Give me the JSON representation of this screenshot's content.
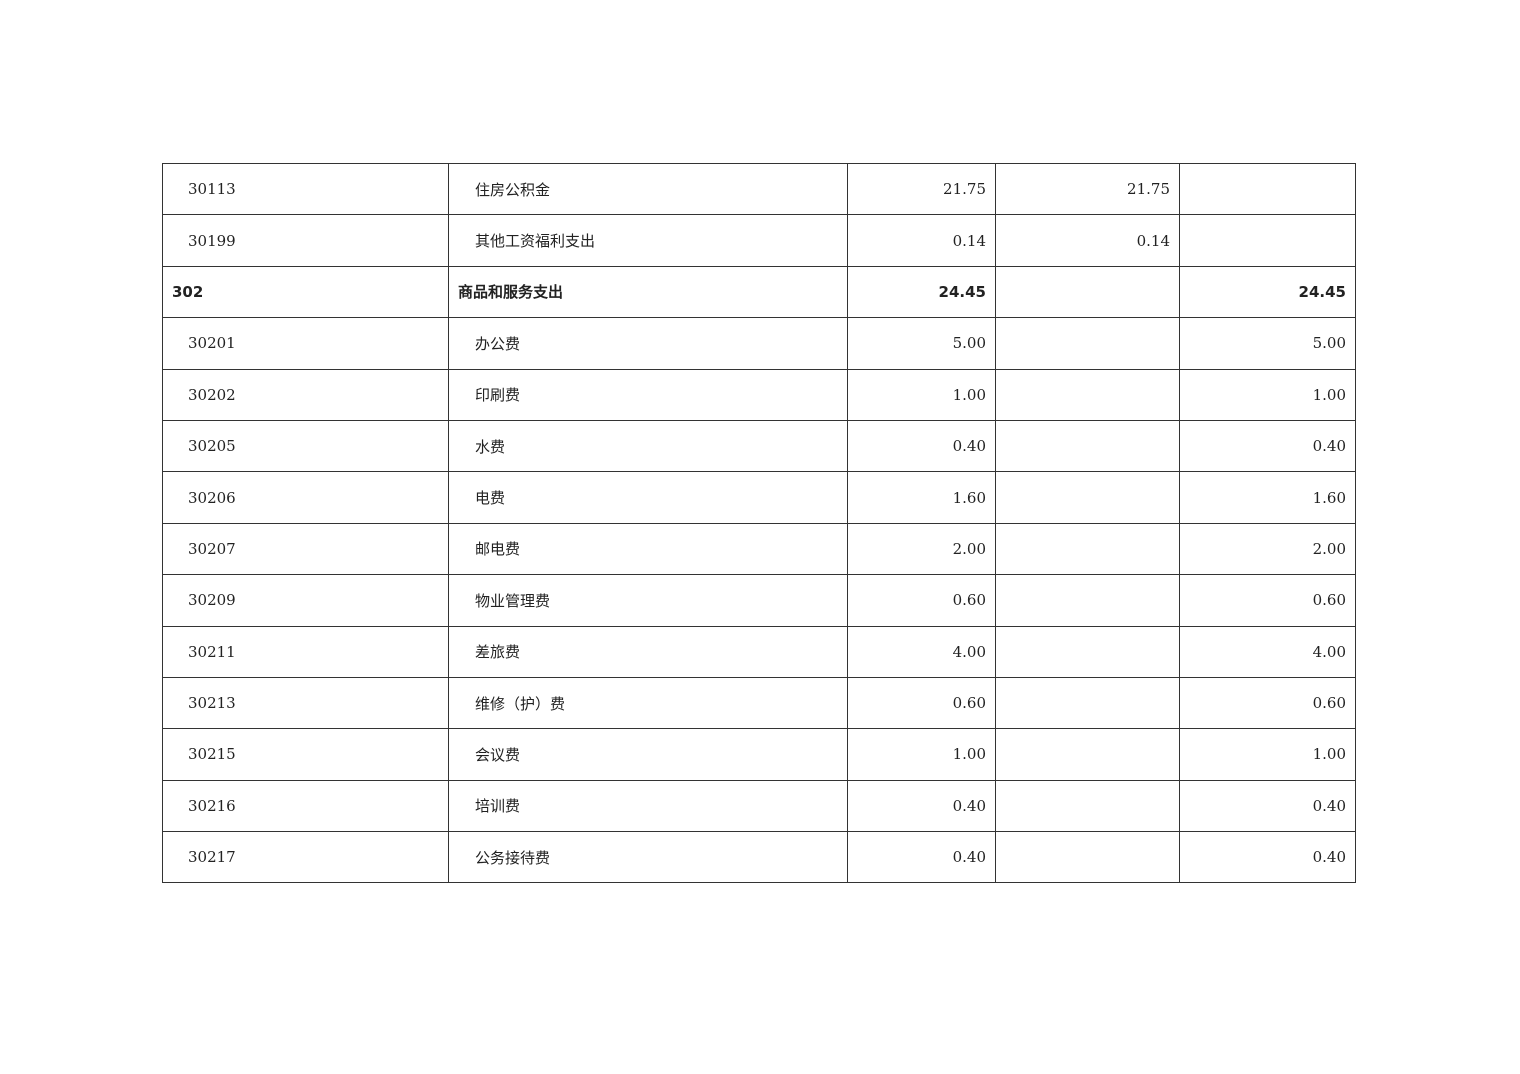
{
  "table": {
    "rows": [
      {
        "code": "30113",
        "name": "住房公积金",
        "total": "21.75",
        "basic": "21.75",
        "project": "",
        "bold": false
      },
      {
        "code": "30199",
        "name": "其他工资福利支出",
        "total": "0.14",
        "basic": "0.14",
        "project": "",
        "bold": false
      },
      {
        "code": "302",
        "name": "商品和服务支出",
        "total": "24.45",
        "basic": "",
        "project": "24.45",
        "bold": true
      },
      {
        "code": "30201",
        "name": "办公费",
        "total": "5.00",
        "basic": "",
        "project": "5.00",
        "bold": false
      },
      {
        "code": "30202",
        "name": "印刷费",
        "total": "1.00",
        "basic": "",
        "project": "1.00",
        "bold": false
      },
      {
        "code": "30205",
        "name": "水费",
        "total": "0.40",
        "basic": "",
        "project": "0.40",
        "bold": false
      },
      {
        "code": "30206",
        "name": "电费",
        "total": "1.60",
        "basic": "",
        "project": "1.60",
        "bold": false
      },
      {
        "code": "30207",
        "name": "邮电费",
        "total": "2.00",
        "basic": "",
        "project": "2.00",
        "bold": false
      },
      {
        "code": "30209",
        "name": "物业管理费",
        "total": "0.60",
        "basic": "",
        "project": "0.60",
        "bold": false
      },
      {
        "code": "30211",
        "name": "差旅费",
        "total": "4.00",
        "basic": "",
        "project": "4.00",
        "bold": false
      },
      {
        "code": "30213",
        "name": "维修（护）费",
        "total": "0.60",
        "basic": "",
        "project": "0.60",
        "bold": false
      },
      {
        "code": "30215",
        "name": "会议费",
        "total": "1.00",
        "basic": "",
        "project": "1.00",
        "bold": false
      },
      {
        "code": "30216",
        "name": "培训费",
        "total": "0.40",
        "basic": "",
        "project": "0.40",
        "bold": false
      },
      {
        "code": "30217",
        "name": "公务接待费",
        "total": "0.40",
        "basic": "",
        "project": "0.40",
        "bold": false
      }
    ]
  }
}
